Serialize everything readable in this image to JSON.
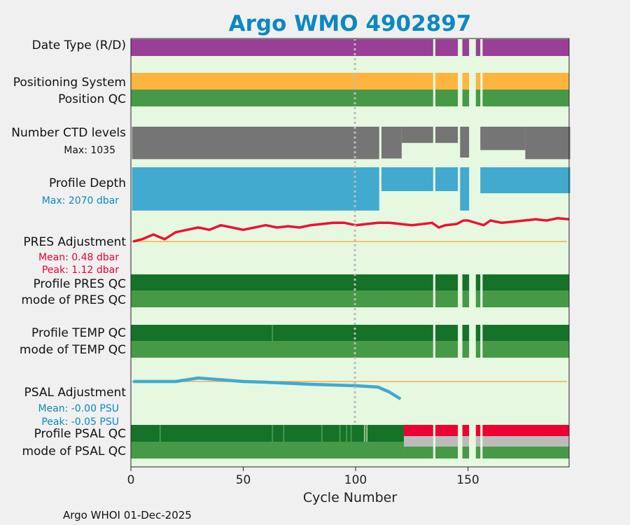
{
  "colors": {
    "plot_bg": "#e6f8e0",
    "data_type": "#993f96",
    "positioning": "#fdb53f",
    "pos_qc": "#469a47",
    "ctd": "#757575",
    "depth": "#42a9cf",
    "pres_line": "#ee1133",
    "zero_line": "#f0b050",
    "qc_good_dark": "#157228",
    "qc_good_light": "#469a47",
    "qc_bad": "#ee0033",
    "qc_gray": "#bbbbbb",
    "psal_line": "#42a9cf",
    "title": "#0b89c0",
    "mean_pres": "#ee0033",
    "mean_psal": "#0b89c0",
    "max_depth": "#0b89c0"
  },
  "title": "Argo WMO 4902897",
  "footer": "Argo WHOI 01-Dec-2025",
  "rows": {
    "data_type": "Date Type (R/D)",
    "positioning": "Positioning System",
    "position_qc": "Position QC",
    "ctd": "Number CTD levels",
    "ctd_max": "Max: 1035",
    "depth": "Profile Depth",
    "depth_max": "Max: 2070 dbar",
    "pres_adj": "PRES Adjustment",
    "pres_mean": "Mean: 0.48 dbar",
    "pres_peak": "Peak: 1.12 dbar",
    "pres_qc": "Profile PRES QC",
    "pres_mode": "mode of PRES QC",
    "temp_qc": "Profile TEMP QC",
    "temp_mode": "mode of TEMP QC",
    "psal_adj": "PSAL Adjustment",
    "psal_mean": "Mean: -0.00 PSU",
    "psal_peak": "Peak: -0.05 PSU",
    "psal_qc": "Profile PSAL QC",
    "psal_mode": "mode of PSAL QC"
  },
  "chart_data": {
    "type": "bar",
    "xlabel": "Cycle Number",
    "xlim": [
      0,
      195
    ],
    "xticks": [
      0,
      50,
      100,
      150
    ],
    "gaps": [
      [
        134.5,
        135.5
      ],
      [
        145.5,
        147.5
      ],
      [
        150.5,
        153.5
      ],
      [
        155.5,
        156.5
      ]
    ],
    "psal_qc_bad_from": 121.5,
    "psal_qc_lighter_cycles": [
      13,
      63,
      68,
      85,
      93,
      96,
      98,
      104,
      105
    ],
    "ctd_levels": {
      "max": 1035,
      "segments": [
        {
          "from": 1,
          "to": 110,
          "value": 1000
        },
        {
          "from": 112,
          "to": 120,
          "value": 980
        },
        {
          "from": 121,
          "to": 134,
          "value": 500
        },
        {
          "from": 136,
          "to": 145,
          "value": 500
        },
        {
          "from": 147,
          "to": 150,
          "value": 950
        },
        {
          "from": 156,
          "to": 175,
          "value": 720
        },
        {
          "from": 176,
          "to": 195,
          "value": 1000
        }
      ]
    },
    "profile_depth": {
      "max": 2070,
      "segments": [
        {
          "from": 1,
          "to": 110,
          "value": 2000
        },
        {
          "from": 112,
          "to": 134,
          "value": 1100
        },
        {
          "from": 136,
          "to": 145,
          "value": 1100
        },
        {
          "from": 147,
          "to": 150,
          "value": 2000
        },
        {
          "from": 156,
          "to": 195,
          "value": 1200
        }
      ]
    },
    "pres_adjustment": {
      "ylim": [
        -1.2,
        1.2
      ],
      "x": [
        1,
        5,
        10,
        15,
        20,
        25,
        30,
        35,
        40,
        45,
        50,
        55,
        60,
        65,
        70,
        75,
        80,
        85,
        90,
        95,
        100,
        105,
        110,
        115,
        120,
        125,
        130,
        134,
        137,
        140,
        145,
        148,
        150,
        157,
        160,
        165,
        170,
        175,
        180,
        185,
        190,
        195
      ],
      "y": [
        0.0,
        0.1,
        0.3,
        0.1,
        0.4,
        0.5,
        0.6,
        0.5,
        0.7,
        0.6,
        0.5,
        0.6,
        0.7,
        0.6,
        0.65,
        0.6,
        0.7,
        0.75,
        0.8,
        0.8,
        0.7,
        0.75,
        0.8,
        0.8,
        0.75,
        0.7,
        0.75,
        0.8,
        0.6,
        0.7,
        0.75,
        0.9,
        0.9,
        0.7,
        0.9,
        0.8,
        0.85,
        0.9,
        0.95,
        0.9,
        1.0,
        0.95
      ]
    },
    "psal_adjustment": {
      "ylim": [
        -0.12,
        0.02
      ],
      "x": [
        1,
        10,
        20,
        30,
        40,
        50,
        60,
        70,
        80,
        90,
        100,
        110,
        115,
        120
      ],
      "y": [
        0.0,
        0.0,
        0.0,
        0.01,
        0.005,
        0.0,
        -0.002,
        -0.005,
        -0.008,
        -0.01,
        -0.012,
        -0.016,
        -0.03,
        -0.05
      ]
    }
  }
}
